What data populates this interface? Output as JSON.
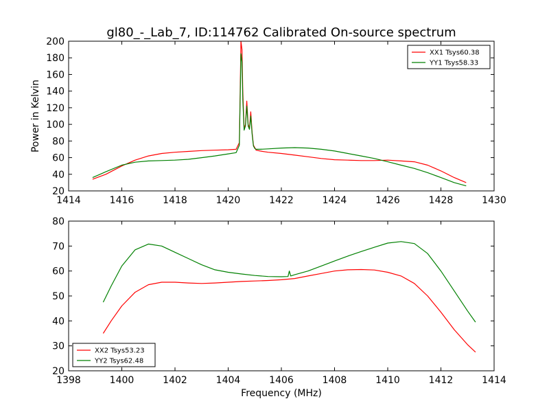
{
  "figure": {
    "title": "gl80_-_Lab_7, ID:114762 Calibrated On-source spectrum"
  },
  "chart_data": [
    {
      "type": "line",
      "title": "gl80_-_Lab_7, ID:114762 Calibrated On-source spectrum",
      "xlabel": "",
      "ylabel": "Power in Kelvin",
      "xlim": [
        1414,
        1430
      ],
      "ylim": [
        20,
        200
      ],
      "xticks": [
        1414,
        1416,
        1418,
        1420,
        1422,
        1424,
        1426,
        1428,
        1430
      ],
      "yticks": [
        20,
        40,
        60,
        80,
        100,
        120,
        140,
        160,
        180,
        200
      ],
      "grid": false,
      "legend_position": "top-right",
      "series": [
        {
          "name": "XX1 Tsys60.38",
          "color": "#ff0000",
          "x": [
            1414.9,
            1415.4,
            1416.0,
            1416.5,
            1417.0,
            1417.5,
            1418.0,
            1418.5,
            1419.0,
            1419.5,
            1420.0,
            1420.3,
            1420.42,
            1420.48,
            1420.52,
            1420.55,
            1420.6,
            1420.65,
            1420.7,
            1420.75,
            1420.8,
            1420.85,
            1420.9,
            1420.95,
            1421.0,
            1421.05,
            1421.2,
            1421.5,
            1422.0,
            1422.5,
            1423.0,
            1423.5,
            1424.0,
            1424.5,
            1425.0,
            1425.5,
            1426.0,
            1426.5,
            1427.0,
            1427.5,
            1428.0,
            1428.5,
            1428.95
          ],
          "values": [
            34,
            40,
            50,
            57,
            62,
            65,
            66.5,
            67.5,
            68.5,
            69,
            69.5,
            70,
            78,
            200,
            190,
            140,
            95,
            100,
            128,
            100,
            95,
            115,
            90,
            75,
            72,
            69,
            68,
            66.5,
            65,
            63,
            61,
            59,
            57.5,
            57,
            56.5,
            56.5,
            57,
            56,
            55,
            51,
            44,
            36,
            30
          ]
        },
        {
          "name": "YY1 Tsys58.33",
          "color": "#008000",
          "x": [
            1414.9,
            1415.4,
            1416.0,
            1416.5,
            1417.0,
            1417.5,
            1418.0,
            1418.5,
            1419.0,
            1419.5,
            1420.0,
            1420.3,
            1420.42,
            1420.48,
            1420.52,
            1420.55,
            1420.6,
            1420.65,
            1420.7,
            1420.75,
            1420.8,
            1420.85,
            1420.9,
            1420.95,
            1421.0,
            1421.05,
            1421.2,
            1421.5,
            1422.0,
            1422.5,
            1423.0,
            1423.5,
            1424.0,
            1424.5,
            1425.0,
            1425.5,
            1426.0,
            1426.5,
            1427.0,
            1427.5,
            1428.0,
            1428.5,
            1428.95
          ],
          "values": [
            36,
            43,
            51,
            54.5,
            56,
            56.5,
            57,
            58,
            60,
            62,
            64.5,
            66,
            75,
            185,
            175,
            130,
            93,
            98,
            122,
            98,
            94,
            110,
            88,
            74,
            71,
            70,
            70,
            70.5,
            71.5,
            72,
            71.5,
            70,
            68,
            65,
            62,
            59,
            55,
            51,
            47,
            42,
            36,
            30,
            26
          ]
        }
      ]
    },
    {
      "type": "line",
      "title": "",
      "xlabel": "Frequency (MHz)",
      "ylabel": "",
      "xlim": [
        1398,
        1414
      ],
      "ylim": [
        20,
        80
      ],
      "xticks": [
        1398,
        1400,
        1402,
        1404,
        1406,
        1408,
        1410,
        1412,
        1414
      ],
      "yticks": [
        20,
        30,
        40,
        50,
        60,
        70,
        80
      ],
      "grid": false,
      "legend_position": "bottom-left",
      "series": [
        {
          "name": "XX2 Tsys53.23",
          "color": "#ff0000",
          "x": [
            1399.3,
            1399.6,
            1400.0,
            1400.5,
            1401.0,
            1401.5,
            1402.0,
            1402.5,
            1403.0,
            1403.5,
            1404.0,
            1404.5,
            1405.0,
            1405.5,
            1406.0,
            1406.5,
            1407.0,
            1407.5,
            1408.0,
            1408.5,
            1409.0,
            1409.5,
            1410.0,
            1410.5,
            1411.0,
            1411.5,
            1412.0,
            1412.5,
            1413.0,
            1413.3
          ],
          "values": [
            35,
            40,
            46,
            51.5,
            54.5,
            55.5,
            55.5,
            55.2,
            55.0,
            55.2,
            55.5,
            55.8,
            56.0,
            56.2,
            56.5,
            57.0,
            58.0,
            59.0,
            60.0,
            60.5,
            60.6,
            60.4,
            59.5,
            58.0,
            55.0,
            50.0,
            43.5,
            36.5,
            30.5,
            27.5
          ]
        },
        {
          "name": "YY2 Tsys62.48",
          "color": "#008000",
          "x": [
            1399.3,
            1399.6,
            1400.0,
            1400.5,
            1401.0,
            1401.5,
            1402.0,
            1402.5,
            1403.0,
            1403.5,
            1404.0,
            1404.5,
            1405.0,
            1405.5,
            1406.0,
            1406.25,
            1406.3,
            1406.35,
            1406.5,
            1407.0,
            1407.5,
            1408.0,
            1408.5,
            1409.0,
            1409.5,
            1410.0,
            1410.5,
            1411.0,
            1411.5,
            1412.0,
            1412.5,
            1413.0,
            1413.3
          ],
          "values": [
            47.5,
            54,
            62,
            68.5,
            70.8,
            70.0,
            67.5,
            65.0,
            62.5,
            60.5,
            59.5,
            58.8,
            58.2,
            57.8,
            57.7,
            57.8,
            60.0,
            58.0,
            58.5,
            60.0,
            62.0,
            64.0,
            66.0,
            67.8,
            69.5,
            71.2,
            71.8,
            71.0,
            67.0,
            60.0,
            52.0,
            44.0,
            39.5
          ]
        }
      ]
    }
  ]
}
